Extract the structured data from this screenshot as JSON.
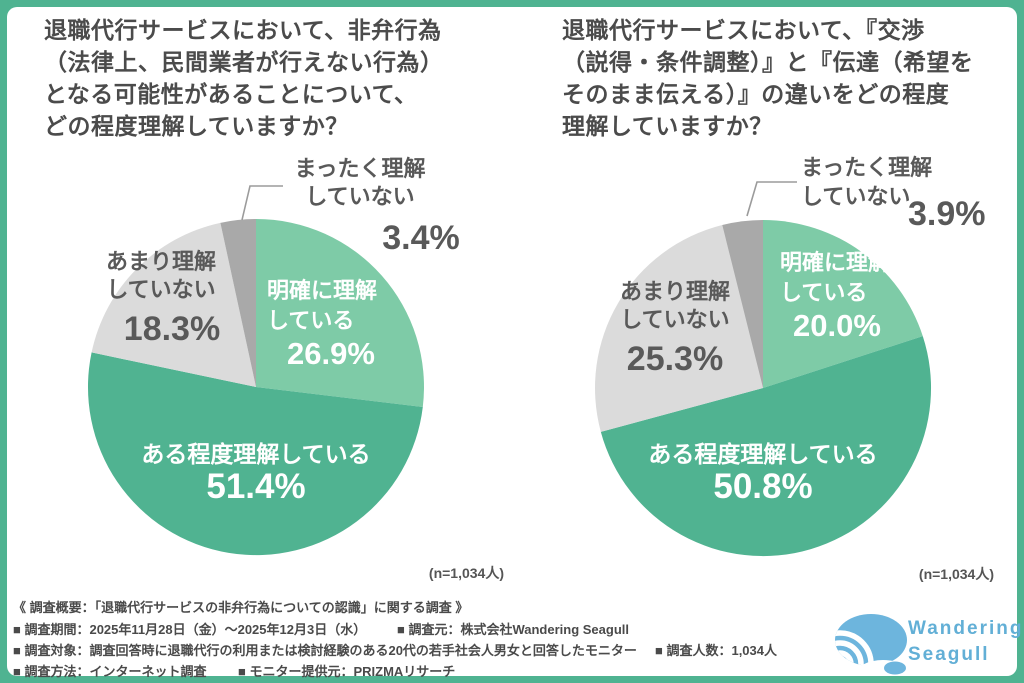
{
  "frame_color": "#4fb391",
  "chart_data": [
    {
      "type": "pie",
      "title": "退職代行サービスにおいて、非弁行為（法律上、民間業者が行えない行為）となる可能性があることについて、どの程度理解していますか？",
      "categories": [
        "明確に理解している",
        "ある程度理解している",
        "あまり理解していない",
        "まったく理解していない"
      ],
      "values": [
        26.9,
        51.4,
        18.3,
        3.4
      ],
      "colors": [
        "#7ecba7",
        "#50b391",
        "#dbdbdb",
        "#a9a9a9"
      ],
      "start_angle_deg": 0,
      "direction": "clockwise",
      "n_label": "(n=1,034人)"
    },
    {
      "type": "pie",
      "title": "退職代行サービスにおいて、『交渉（説得・条件調整）』と『伝達（希望をそのまま伝える）』の違いをどの程度理解していますか？",
      "categories": [
        "明確に理解している",
        "ある程度理解している",
        "あまり理解していない",
        "まったく理解していない"
      ],
      "values": [
        20.0,
        50.8,
        25.3,
        3.9
      ],
      "colors": [
        "#7ecba7",
        "#50b391",
        "#dbdbdb",
        "#a9a9a9"
      ],
      "start_angle_deg": 0,
      "direction": "clockwise",
      "n_label": "(n=1,034人)"
    }
  ],
  "charts": [
    {
      "title_lines": [
        "退職代行サービスにおいて、非弁行為",
        "（法律上、民間業者が行えない行為）",
        "となる可能性があることについて、",
        "どの程度理解していますか？"
      ],
      "labels": {
        "mattaku": {
          "line1": "まったく理解",
          "line2": "していない",
          "value": "3.4%"
        },
        "amari": {
          "line1": "あまり理解",
          "line2": "していない",
          "value": "18.3%"
        },
        "meikaku": {
          "line1": "明確に理解",
          "line2": "している",
          "value": "26.9%"
        },
        "aruteido": {
          "label": "ある程度理解している",
          "value": "51.4%"
        }
      },
      "n_label": "(n=1,034人)"
    },
    {
      "title_lines": [
        "退職代行サービスにおいて、『交渉",
        "（説得・条件調整）』と『伝達（希望を",
        "そのまま伝える）』の違いをどの程度",
        "理解していますか？"
      ],
      "labels": {
        "mattaku": {
          "line1": "まったく理解",
          "line2": "していない",
          "value": "3.9%"
        },
        "amari": {
          "line1": "あまり理解",
          "line2": "していない",
          "value": "25.3%"
        },
        "meikaku": {
          "line1": "明確に理解",
          "line2": "している",
          "value": "20.0%"
        },
        "aruteido": {
          "label": "ある程度理解している",
          "value": "50.8%"
        }
      },
      "n_label": "(n=1,034人)"
    }
  ],
  "footer": {
    "heading": "《 調査概要：「退職代行サービスの非弁行為についての認識」に関する調査 》",
    "row2a": "■ 調査期間：2025年11月28日（金）～2025年12月3日（水）",
    "row2b": "■ 調査元：株式会社Wandering Seagull",
    "row3a": "■ 調査対象：調査回答時に退職代行の利用または検討経験のある20代の若手社会人男女と回答したモニター",
    "row3b": "■ 調査人数：1,034人",
    "row4a": "■ 調査方法：インターネット調査",
    "row4b": "■ モニター提供元：PRIZMAリサーチ"
  },
  "logo": {
    "line1": "Wandering",
    "line2": "Seagull",
    "color": "#62afd6",
    "mark_color": "#6db5dd"
  }
}
